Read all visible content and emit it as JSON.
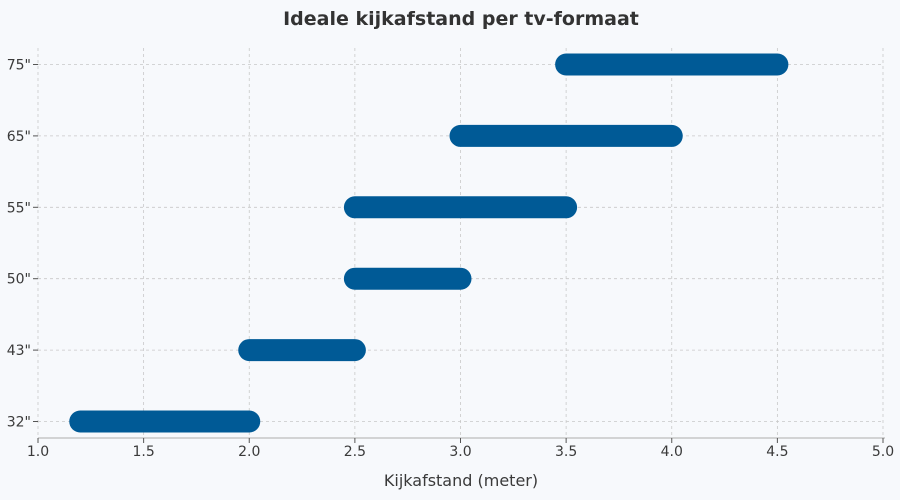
{
  "chart_data": {
    "type": "range-bar",
    "title": "Ideale kijkafstand per tv-formaat",
    "xlabel": "Kijkafstand (meter)",
    "ylabel": "",
    "xlim": [
      1.0,
      5.0
    ],
    "xticks": [
      "1.0",
      "1.5",
      "2.0",
      "2.5",
      "3.0",
      "3.5",
      "4.0",
      "4.5",
      "5.0"
    ],
    "grid": true,
    "bar_color": "#005a96",
    "categories": [
      "32\"",
      "43\"",
      "50\"",
      "55\"",
      "65\"",
      "75\""
    ],
    "ranges": [
      {
        "category": "32\"",
        "start": 1.2,
        "end": 2.0
      },
      {
        "category": "43\"",
        "start": 2.0,
        "end": 2.5
      },
      {
        "category": "50\"",
        "start": 2.5,
        "end": 3.0
      },
      {
        "category": "55\"",
        "start": 2.5,
        "end": 3.5
      },
      {
        "category": "65\"",
        "start": 3.0,
        "end": 4.0
      },
      {
        "category": "75\"",
        "start": 3.5,
        "end": 4.5
      }
    ]
  }
}
